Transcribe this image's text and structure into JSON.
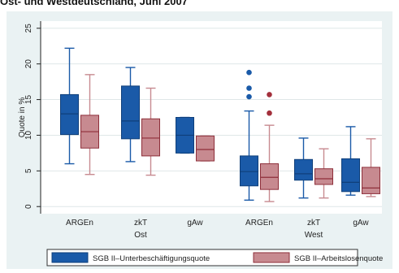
{
  "title": "Ost- und Westdeutschland, Juni 2007",
  "chart_data": {
    "type": "boxplot",
    "ylabel": "Quote in %",
    "ylim": [
      -1,
      26
    ],
    "yticks": [
      0,
      5,
      10,
      15,
      20,
      25
    ],
    "grid": true,
    "groups": [
      "Ost",
      "West"
    ],
    "categories": [
      {
        "label": "ARGEn",
        "group": "Ost"
      },
      {
        "label": "zkT",
        "group": "Ost"
      },
      {
        "label": "gAw",
        "group": "Ost"
      },
      {
        "label": "ARGEn",
        "group": "West"
      },
      {
        "label": "zkT",
        "group": "West"
      },
      {
        "label": "gAw",
        "group": "West"
      }
    ],
    "series": [
      {
        "name": "SGB II–Unterbeschäftigungsquote",
        "color": "#1a5aa8",
        "boxes": [
          {
            "whislo": 6.0,
            "q1": 10.1,
            "med": 13.0,
            "q3": 15.7,
            "whishi": 22.2,
            "outliers": []
          },
          {
            "whislo": 6.3,
            "q1": 9.5,
            "med": 12.0,
            "q3": 16.9,
            "whishi": 19.5,
            "outliers": []
          },
          {
            "whislo": 7.5,
            "q1": 7.5,
            "med": 10.0,
            "q3": 12.5,
            "whishi": 12.5,
            "outliers": []
          },
          {
            "whislo": 0.9,
            "q1": 2.9,
            "med": 4.9,
            "q3": 7.1,
            "whishi": 13.4,
            "outliers": [
              15.4,
              16.6,
              18.8
            ]
          },
          {
            "whislo": 1.2,
            "q1": 3.7,
            "med": 4.6,
            "q3": 6.6,
            "whishi": 9.6,
            "outliers": []
          },
          {
            "whislo": 1.6,
            "q1": 2.1,
            "med": 3.4,
            "q3": 6.7,
            "whishi": 11.2,
            "outliers": []
          }
        ]
      },
      {
        "name": "SGB II–Arbeitslosenquote",
        "color": "#c78a90",
        "boxes": [
          {
            "whislo": 4.5,
            "q1": 8.2,
            "med": 10.5,
            "q3": 12.8,
            "whishi": 18.5,
            "outliers": []
          },
          {
            "whislo": 4.4,
            "q1": 7.1,
            "med": 9.6,
            "q3": 12.3,
            "whishi": 16.6,
            "outliers": []
          },
          {
            "whislo": 6.4,
            "q1": 6.4,
            "med": 8.0,
            "q3": 9.9,
            "whishi": 9.9,
            "outliers": []
          },
          {
            "whislo": 0.7,
            "q1": 2.4,
            "med": 4.1,
            "q3": 6.0,
            "whishi": 11.4,
            "outliers": [
              13.1,
              15.7
            ]
          },
          {
            "whislo": 1.2,
            "q1": 3.1,
            "med": 3.9,
            "q3": 5.3,
            "whishi": 8.1,
            "outliers": []
          },
          {
            "whislo": 1.4,
            "q1": 1.8,
            "med": 2.6,
            "q3": 5.5,
            "whishi": 9.5,
            "outliers": []
          }
        ]
      }
    ]
  }
}
